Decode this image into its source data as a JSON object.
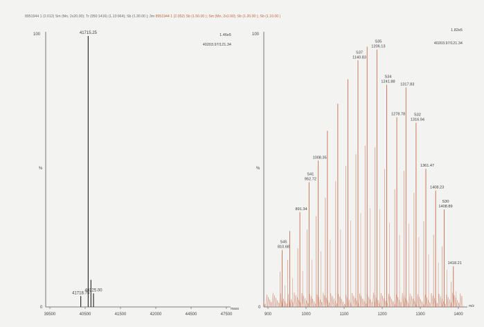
{
  "header": {
    "left": "8951944  1 (2.012) Sm (Mn, 2x20.00); Tr (950:1416) (1.13:964); Sb (1.30.00 ); 3m",
    "right": "8951944  1 (2.052) Sb (1.50.00 ); Sm (Mn, 2x2.00); Sb (1.20.00 ); Sb (1.10.00 )"
  },
  "colors": {
    "left_trace": "#2f2f2f",
    "right_trace": "#c97a5e",
    "annotation": "#3a3a3a",
    "faded_label": "#e0b98a"
  },
  "chart_data": [
    {
      "type": "line",
      "panel": "left",
      "title": "",
      "xlabel": "mass",
      "ylabel": "%",
      "xlim": [
        39800,
        48500
      ],
      "ylim": [
        0,
        100
      ],
      "y_top_label": "100",
      "y_bottom_label": "0",
      "x_ticks": [
        "39500",
        "40500",
        "41500",
        "42000",
        "44500",
        "47500"
      ],
      "corner_values": [
        "1.46e5",
        "40203.97/121.34"
      ],
      "peaks": [
        {
          "x": 41800,
          "y": 100,
          "label": "41715.25"
        },
        {
          "x": 41450,
          "y": 4,
          "label": "41718.75"
        },
        {
          "x": 42050,
          "y": 5,
          "label": "40225.00"
        },
        {
          "x": 41930,
          "y": 10,
          "label": ""
        }
      ]
    },
    {
      "type": "line",
      "panel": "right",
      "title": "",
      "xlabel": "m/z",
      "ylabel": "%",
      "xlim": [
        820,
        1470
      ],
      "ylim": [
        0,
        100
      ],
      "y_top_label": "100",
      "y_bottom_label": "0",
      "x_ticks": [
        "900",
        "1000",
        "1100",
        "1200",
        "1300",
        "1400"
      ],
      "corner_values": [
        "1.82e5",
        "40203.97/121.34"
      ],
      "peaks": [
        {
          "x": 880,
          "y": 21,
          "label": "S45",
          "value": "810.68"
        },
        {
          "x": 905,
          "y": 28,
          "label": "",
          "value": ""
        },
        {
          "x": 938,
          "y": 35,
          "label": "",
          "value": "891.34"
        },
        {
          "x": 968,
          "y": 46,
          "label": "S41",
          "value": "952.72"
        },
        {
          "x": 998,
          "y": 54,
          "label": "",
          "value": "1008.35"
        },
        {
          "x": 1028,
          "y": 65,
          "label": "",
          "value": ""
        },
        {
          "x": 1062,
          "y": 75,
          "label": "",
          "value": ""
        },
        {
          "x": 1095,
          "y": 84,
          "label": "",
          "value": ""
        },
        {
          "x": 1128,
          "y": 91,
          "label": "S37",
          "value": "1140.83"
        },
        {
          "x": 1158,
          "y": 96,
          "label": "",
          "value": ""
        },
        {
          "x": 1190,
          "y": 95,
          "label": "S35",
          "value": "1206.13"
        },
        {
          "x": 1222,
          "y": 82,
          "label": "S34",
          "value": "1241.88"
        },
        {
          "x": 1255,
          "y": 70,
          "label": "",
          "value": "1278.78"
        },
        {
          "x": 1285,
          "y": 81,
          "label": "",
          "value": "1317.83"
        },
        {
          "x": 1318,
          "y": 68,
          "label": "S32",
          "value": "1316.94"
        },
        {
          "x": 1350,
          "y": 51,
          "label": "",
          "value": "1361.47"
        },
        {
          "x": 1382,
          "y": 43,
          "label": "",
          "value": "1408.23"
        },
        {
          "x": 1410,
          "y": 36,
          "label": "S30",
          "value": "1408.89"
        },
        {
          "x": 1440,
          "y": 15,
          "label": "",
          "value": "1418.21"
        }
      ]
    }
  ]
}
